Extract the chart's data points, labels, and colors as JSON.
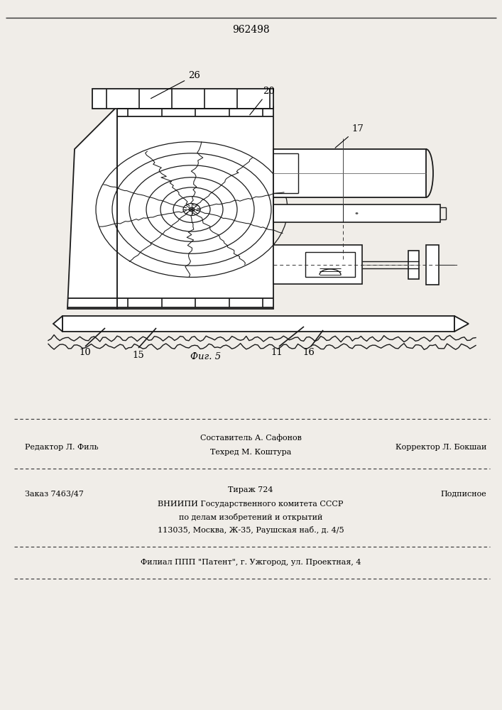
{
  "patent_number": "962498",
  "fig_label": "Фиг. 5",
  "bg_color": "#f0ede8",
  "footer_line1_left": "Редактор Л. Филь",
  "footer_line1_center": "Составитель А. Сафонов",
  "footer_line2_center": "Техред М. Коштура",
  "footer_line1_right": "Корректор Л. Бокшаи",
  "footer_zakaz": "Заказ 7463/47",
  "footer_tirazh": "Тираж 724",
  "footer_podpisnoe": "Подписное",
  "footer_vniiipi": "ВНИИПИ Государственного комитета СССР",
  "footer_po_delam": "по делам изобретений и открытий",
  "footer_address": "113035, Москва, Ж-35, Раушская наб., д. 4/5",
  "footer_filial": "Филиал ППП \"Патент\", г. Ужгород, ул. Проектная, 4"
}
